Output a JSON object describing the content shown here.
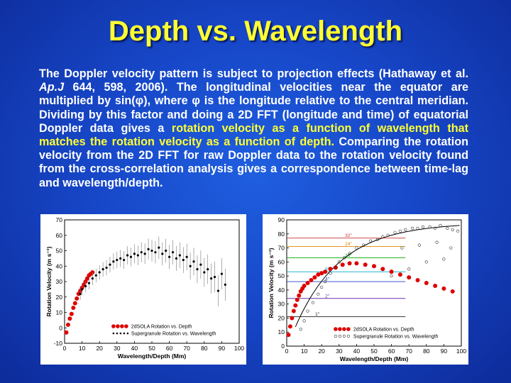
{
  "slide": {
    "title": "Depth vs. Wavelength",
    "paragraph": {
      "p1": "The Doppler velocity pattern is subject to projection effects (Hathaway et al. ",
      "journal": "Ap.J",
      "p2": " 644, 598, 2006). The longitudinal velocities near the equator are multiplied by sin(φ), where φ is the longitude relative to the central meridian. Dividing by this factor and doing a 2D FFT (longitude and time) of equatorial Doppler data gives a ",
      "highlight": "rotation velocity as a function of wavelength that matches the rotation velocity as a function of depth.",
      "p3": " Comparing the rotation velocity from the 2D FFT for raw Doppler data to the rotation velocity found from the cross-correlation analysis gives a correspondence between time-lag and wavelength/depth."
    }
  },
  "colors": {
    "title": "#ffff33",
    "highlight": "#ffff33",
    "sola_points": "#dd0000",
    "supergranule": "#000000"
  },
  "chart_data": [
    {
      "type": "scatter",
      "xlabel": "Wavelength/Depth (Mm)",
      "ylabel": "Rotation Velocity (m s⁻¹)",
      "xlim": [
        0,
        100
      ],
      "ylim": [
        -10,
        70
      ],
      "xticks": [
        0,
        10,
        20,
        30,
        40,
        50,
        60,
        70,
        80,
        90,
        100
      ],
      "yticks": [
        -10,
        0,
        10,
        20,
        30,
        40,
        50,
        60,
        70
      ],
      "legend_position": "bottom-right",
      "series": [
        {
          "name": "2dSOLA Rotation vs. Depth",
          "marker": "red-filled-circle",
          "points": [
            [
              1,
              -3
            ],
            [
              2,
              2
            ],
            [
              3,
              6
            ],
            [
              4,
              9
            ],
            [
              5,
              13
            ],
            [
              6,
              16
            ],
            [
              7,
              19
            ],
            [
              8,
              22
            ],
            [
              9,
              24
            ],
            [
              10,
              26
            ],
            [
              11,
              28
            ],
            [
              12,
              30
            ],
            [
              13,
              32
            ],
            [
              14,
              34
            ],
            [
              15,
              35
            ],
            [
              16,
              36
            ]
          ]
        },
        {
          "name": "Supergranule Rotation vs. Wavelength",
          "marker": "black-dot-with-errorbar",
          "points": [
            [
              9,
              22
            ],
            [
              10,
              25
            ],
            [
              12,
              27
            ],
            [
              14,
              29
            ],
            [
              16,
              32
            ],
            [
              18,
              34
            ],
            [
              20,
              36
            ],
            [
              22,
              38
            ],
            [
              24,
              39
            ],
            [
              26,
              41
            ],
            [
              28,
              43
            ],
            [
              30,
              44
            ],
            [
              32,
              45
            ],
            [
              34,
              44
            ],
            [
              36,
              47
            ],
            [
              38,
              46
            ],
            [
              40,
              48
            ],
            [
              42,
              47
            ],
            [
              44,
              49
            ],
            [
              46,
              48
            ],
            [
              48,
              51
            ],
            [
              50,
              50
            ],
            [
              52,
              49
            ],
            [
              54,
              52
            ],
            [
              56,
              48
            ],
            [
              58,
              50
            ],
            [
              60,
              46
            ],
            [
              62,
              49
            ],
            [
              64,
              45
            ],
            [
              66,
              47
            ],
            [
              68,
              44
            ],
            [
              70,
              46
            ],
            [
              72,
              40
            ],
            [
              74,
              43
            ],
            [
              76,
              38
            ],
            [
              78,
              41
            ],
            [
              80,
              36
            ],
            [
              82,
              38
            ],
            [
              84,
              32
            ],
            [
              86,
              33
            ],
            [
              88,
              24
            ],
            [
              90,
              35
            ],
            [
              92,
              28
            ]
          ]
        }
      ]
    },
    {
      "type": "scatter",
      "xlabel": "Wavelength/Depth (Mm)",
      "ylabel": "Rotation Velocity (m s⁻¹)",
      "xlim": [
        0,
        100
      ],
      "ylim": [
        0,
        90
      ],
      "xticks": [
        0,
        10,
        20,
        30,
        40,
        50,
        60,
        70,
        80,
        90,
        100
      ],
      "yticks": [
        0,
        10,
        20,
        30,
        40,
        50,
        60,
        70,
        80,
        90
      ],
      "legend_position": "bottom-right",
      "lag_lines": [
        {
          "label": "32″",
          "y": 77,
          "color": "#cc3333"
        },
        {
          "label": "24″",
          "y": 71,
          "color": "#dd8800"
        },
        {
          "label": "16″",
          "y": 63,
          "color": "#00aa00"
        },
        {
          "label": "8″",
          "y": 53,
          "color": "#00aacc"
        },
        {
          "label": "4″",
          "y": 46,
          "color": "#2244cc"
        },
        {
          "label": "2″",
          "y": 34,
          "color": "#6633aa"
        },
        {
          "label": "1″",
          "y": 21,
          "color": "#222222"
        }
      ],
      "series": [
        {
          "name": "2dSOLA Rotation vs. Depth",
          "marker": "red-filled-circle",
          "points": [
            [
              1,
              8
            ],
            [
              2,
              14
            ],
            [
              3,
              20
            ],
            [
              4,
              25
            ],
            [
              5,
              29
            ],
            [
              6,
              33
            ],
            [
              7,
              36
            ],
            [
              8,
              39
            ],
            [
              9,
              41
            ],
            [
              10,
              43
            ],
            [
              12,
              45
            ],
            [
              14,
              47
            ],
            [
              16,
              49
            ],
            [
              18,
              51
            ],
            [
              20,
              52
            ],
            [
              22,
              53
            ],
            [
              25,
              55
            ],
            [
              28,
              56
            ],
            [
              32,
              58
            ],
            [
              36,
              59
            ],
            [
              40,
              59
            ],
            [
              45,
              58
            ],
            [
              50,
              57
            ],
            [
              55,
              55
            ],
            [
              60,
              53
            ],
            [
              65,
              51
            ],
            [
              70,
              49
            ],
            [
              75,
              47
            ],
            [
              80,
              45
            ],
            [
              85,
              43
            ],
            [
              90,
              41
            ],
            [
              95,
              39
            ]
          ]
        },
        {
          "name": "Supergranule Rotation vs. Wavelength",
          "marker": "open-circle",
          "points": [
            [
              8,
              12
            ],
            [
              10,
              18
            ],
            [
              12,
              25
            ],
            [
              15,
              31
            ],
            [
              18,
              37
            ],
            [
              20,
              42
            ],
            [
              22,
              46
            ],
            [
              25,
              52
            ],
            [
              28,
              56
            ],
            [
              30,
              60
            ],
            [
              33,
              63
            ],
            [
              36,
              66
            ],
            [
              40,
              70
            ],
            [
              44,
              72
            ],
            [
              48,
              75
            ],
            [
              52,
              76
            ],
            [
              55,
              78
            ],
            [
              58,
              79
            ],
            [
              62,
              81
            ],
            [
              65,
              82
            ],
            [
              68,
              83
            ],
            [
              72,
              84
            ],
            [
              75,
              84
            ],
            [
              78,
              85
            ],
            [
              82,
              85
            ],
            [
              85,
              84
            ],
            [
              88,
              86
            ],
            [
              92,
              84
            ],
            [
              95,
              83
            ],
            [
              98,
              82
            ],
            [
              60,
              50
            ],
            [
              70,
              55
            ],
            [
              80,
              60
            ],
            [
              90,
              62
            ],
            [
              66,
              70
            ],
            [
              76,
              72
            ],
            [
              86,
              74
            ],
            [
              94,
              70
            ]
          ]
        }
      ]
    }
  ]
}
